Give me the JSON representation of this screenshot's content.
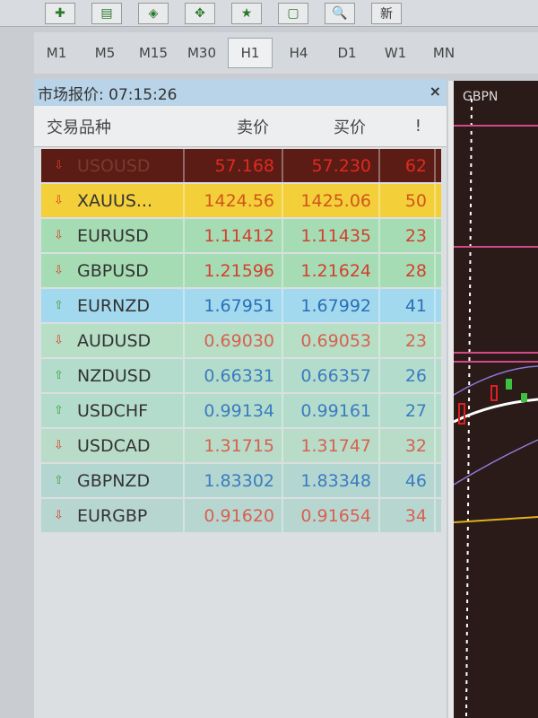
{
  "toolbar": {
    "new_label": "新"
  },
  "timeframes": [
    "M1",
    "M5",
    "M15",
    "M30",
    "H1",
    "H4",
    "D1",
    "W1",
    "MN"
  ],
  "selected_timeframe": "H1",
  "market_watch": {
    "title": "市场报价: 07:15:26",
    "close": "×",
    "columns": [
      "交易品种",
      "卖价",
      "买价",
      "!"
    ],
    "rows": [
      {
        "symbol": "USOUSD",
        "bid": "57.168",
        "ask": "57.230",
        "spread": "62",
        "dir": "down",
        "bg": "#5a1c14",
        "fg": "#e02a20"
      },
      {
        "symbol": "XAUUS...",
        "bid": "1424.56",
        "ask": "1425.06",
        "spread": "50",
        "dir": "down",
        "bg": "#f3cf3a",
        "fg": "#d0561a"
      },
      {
        "symbol": "EURUSD",
        "bid": "1.11412",
        "ask": "1.11435",
        "spread": "23",
        "dir": "down",
        "bg": "#a6dcb4",
        "fg": "#d2402f"
      },
      {
        "symbol": "GBPUSD",
        "bid": "1.21596",
        "ask": "1.21624",
        "spread": "28",
        "dir": "down",
        "bg": "#a6dcb4",
        "fg": "#d2402f"
      },
      {
        "symbol": "EURNZD",
        "bid": "1.67951",
        "ask": "1.67992",
        "spread": "41",
        "dir": "up",
        "bg": "#a3d9ee",
        "fg": "#2a6fb8"
      },
      {
        "symbol": "AUDUSD",
        "bid": "0.69030",
        "ask": "0.69053",
        "spread": "23",
        "dir": "down",
        "bg": "#b6dfc6",
        "fg": "#d8604f"
      },
      {
        "symbol": "NZDUSD",
        "bid": "0.66331",
        "ask": "0.66357",
        "spread": "26",
        "dir": "up",
        "bg": "#b4dccc",
        "fg": "#3a7cc0"
      },
      {
        "symbol": "USDCHF",
        "bid": "0.99134",
        "ask": "0.99161",
        "spread": "27",
        "dir": "up",
        "bg": "#b4dccc",
        "fg": "#3a7cc0"
      },
      {
        "symbol": "USDCAD",
        "bid": "1.31715",
        "ask": "1.31747",
        "spread": "32",
        "dir": "down",
        "bg": "#b8dcc8",
        "fg": "#d8604f"
      },
      {
        "symbol": "GBPNZD",
        "bid": "1.83302",
        "ask": "1.83348",
        "spread": "46",
        "dir": "up",
        "bg": "#b4d6d0",
        "fg": "#3a7cc0"
      },
      {
        "symbol": "EURGBP",
        "bid": "0.91620",
        "ask": "0.91654",
        "spread": "34",
        "dir": "down",
        "bg": "#b8d6d0",
        "fg": "#d8604f"
      }
    ]
  },
  "chart": {
    "symbol": "GBPN"
  }
}
